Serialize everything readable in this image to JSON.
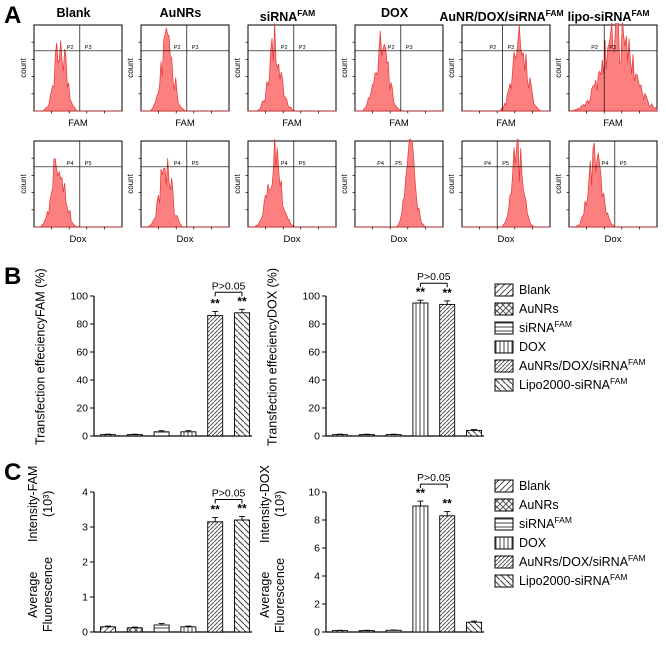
{
  "panels": {
    "a": "A",
    "b": "B",
    "c": "C"
  },
  "flow": {
    "ylabel": "count",
    "titles": [
      {
        "text": "Blank",
        "sup": ""
      },
      {
        "text": "AuNRs",
        "sup": ""
      },
      {
        "text": "siRNA",
        "sup": "FAM"
      },
      {
        "text": "DOX",
        "sup": ""
      },
      {
        "text": "AuNR/DOX/siRNA",
        "sup": "FAM"
      },
      {
        "text": "lipo-siRNA",
        "sup": "FAM"
      }
    ],
    "rows": [
      {
        "xlabel": "FAM",
        "show_titles": true,
        "gate_labels": [
          "P2",
          "P3"
        ],
        "plots": [
          {
            "peak": 0.3,
            "sigma": 0.065,
            "h": 0.8
          },
          {
            "peak": 0.3,
            "sigma": 0.065,
            "h": 0.82
          },
          {
            "peak": 0.31,
            "sigma": 0.07,
            "h": 0.8
          },
          {
            "peak": 0.3,
            "sigma": 0.075,
            "h": 0.82
          },
          {
            "peak": 0.66,
            "sigma": 0.08,
            "h": 0.8,
            "gate": 0.46
          },
          {
            "peak": 0.55,
            "sigma": 0.17,
            "h": 0.88,
            "gate": 0.4
          }
        ]
      },
      {
        "xlabel": "Dox",
        "show_titles": false,
        "gate_labels": [
          "P4",
          "P5"
        ],
        "plots": [
          {
            "peak": 0.28,
            "sigma": 0.07,
            "h": 0.8
          },
          {
            "peak": 0.28,
            "sigma": 0.065,
            "h": 0.78
          },
          {
            "peak": 0.3,
            "sigma": 0.075,
            "h": 0.82
          },
          {
            "peak": 0.63,
            "sigma": 0.055,
            "h": 0.9,
            "gate": 0.4
          },
          {
            "peak": 0.63,
            "sigma": 0.06,
            "h": 0.86,
            "gate": 0.4
          },
          {
            "peak": 0.3,
            "sigma": 0.075,
            "h": 0.8
          }
        ]
      }
    ]
  },
  "legend": {
    "items": [
      {
        "text": "Blank",
        "sup": "",
        "pattern": "diag"
      },
      {
        "text": "AuNRs",
        "sup": "",
        "pattern": "cross"
      },
      {
        "text": "siRNA",
        "sup": "FAM",
        "pattern": "horiz"
      },
      {
        "text": "DOX",
        "sup": "",
        "pattern": "vert"
      },
      {
        "text": "AuNRs/DOX/siRNA",
        "sup": "FAM",
        "pattern": "diagfine"
      },
      {
        "text": "Lipo2000-siRNA",
        "sup": "FAM",
        "pattern": "diagwide"
      }
    ]
  },
  "chart_data": [
    {
      "type": "bar",
      "panel": "B",
      "position": "left",
      "ylabel_lines": [
        "Transfection effeciency",
        "FAM (%)"
      ],
      "categories": [
        "Blank",
        "AuNRs",
        "siRNA^FAM",
        "DOX",
        "AuNRs/DOX/siRNA^FAM",
        "Lipo2000-siRNA^FAM"
      ],
      "values": [
        1,
        1,
        3,
        3,
        86,
        88
      ],
      "errors": [
        0.3,
        0.3,
        0.8,
        0.8,
        3,
        2.5
      ],
      "ylim": [
        0,
        100
      ],
      "yticks": [
        0,
        20,
        40,
        60,
        80,
        100
      ],
      "sig_indices": [
        4,
        5
      ],
      "sig_label": "**",
      "bracket": [
        4,
        5
      ],
      "bracket_label": "P>0.05"
    },
    {
      "type": "bar",
      "panel": "B",
      "position": "right",
      "ylabel_lines": [
        "Transfection effeciency",
        "DOX (%)"
      ],
      "categories": [
        "Blank",
        "AuNRs",
        "siRNA^FAM",
        "DOX",
        "AuNRs/DOX/siRNA^FAM",
        "Lipo2000-siRNA^FAM"
      ],
      "values": [
        1,
        1,
        1,
        95,
        94,
        4
      ],
      "errors": [
        0.3,
        0.3,
        0.3,
        2,
        2.5,
        0.6
      ],
      "ylim": [
        0,
        100
      ],
      "yticks": [
        0,
        20,
        40,
        60,
        80,
        100
      ],
      "sig_indices": [
        3,
        4
      ],
      "sig_label": "**",
      "bracket": [
        3,
        4
      ],
      "bracket_label": "P>0.05"
    },
    {
      "type": "bar",
      "panel": "C",
      "position": "left",
      "ylabel_lines": [
        "Average Fluorescence",
        "Intensity-FAM (10³)"
      ],
      "categories": [
        "Blank",
        "AuNRs",
        "siRNA^FAM",
        "DOX",
        "AuNRs/DOX/siRNA^FAM",
        "Lipo2000-siRNA^FAM"
      ],
      "values": [
        0.15,
        0.12,
        0.2,
        0.15,
        3.15,
        3.2
      ],
      "errors": [
        0.02,
        0.02,
        0.04,
        0.02,
        0.12,
        0.1
      ],
      "ylim": [
        0,
        4
      ],
      "yticks": [
        0,
        1,
        2,
        3,
        4
      ],
      "sig_indices": [
        4,
        5
      ],
      "sig_label": "**",
      "bracket": [
        4,
        5
      ],
      "bracket_label": "P>0.05"
    },
    {
      "type": "bar",
      "panel": "C",
      "position": "right",
      "ylabel_lines": [
        "Average Fluorescence",
        "Intensity-DOX (10³)"
      ],
      "categories": [
        "Blank",
        "AuNRs",
        "siRNA^FAM",
        "DOX",
        "AuNRs/DOX/siRNA^FAM",
        "Lipo2000-siRNA^FAM"
      ],
      "values": [
        0.1,
        0.1,
        0.12,
        9.0,
        8.3,
        0.7
      ],
      "errors": [
        0.02,
        0.02,
        0.02,
        0.35,
        0.3,
        0.08
      ],
      "ylim": [
        0,
        10
      ],
      "yticks": [
        0,
        2,
        4,
        6,
        8,
        10
      ],
      "sig_indices": [
        3,
        4
      ],
      "sig_label": "**",
      "bracket": [
        3,
        4
      ],
      "bracket_label": "P>0.05"
    }
  ]
}
